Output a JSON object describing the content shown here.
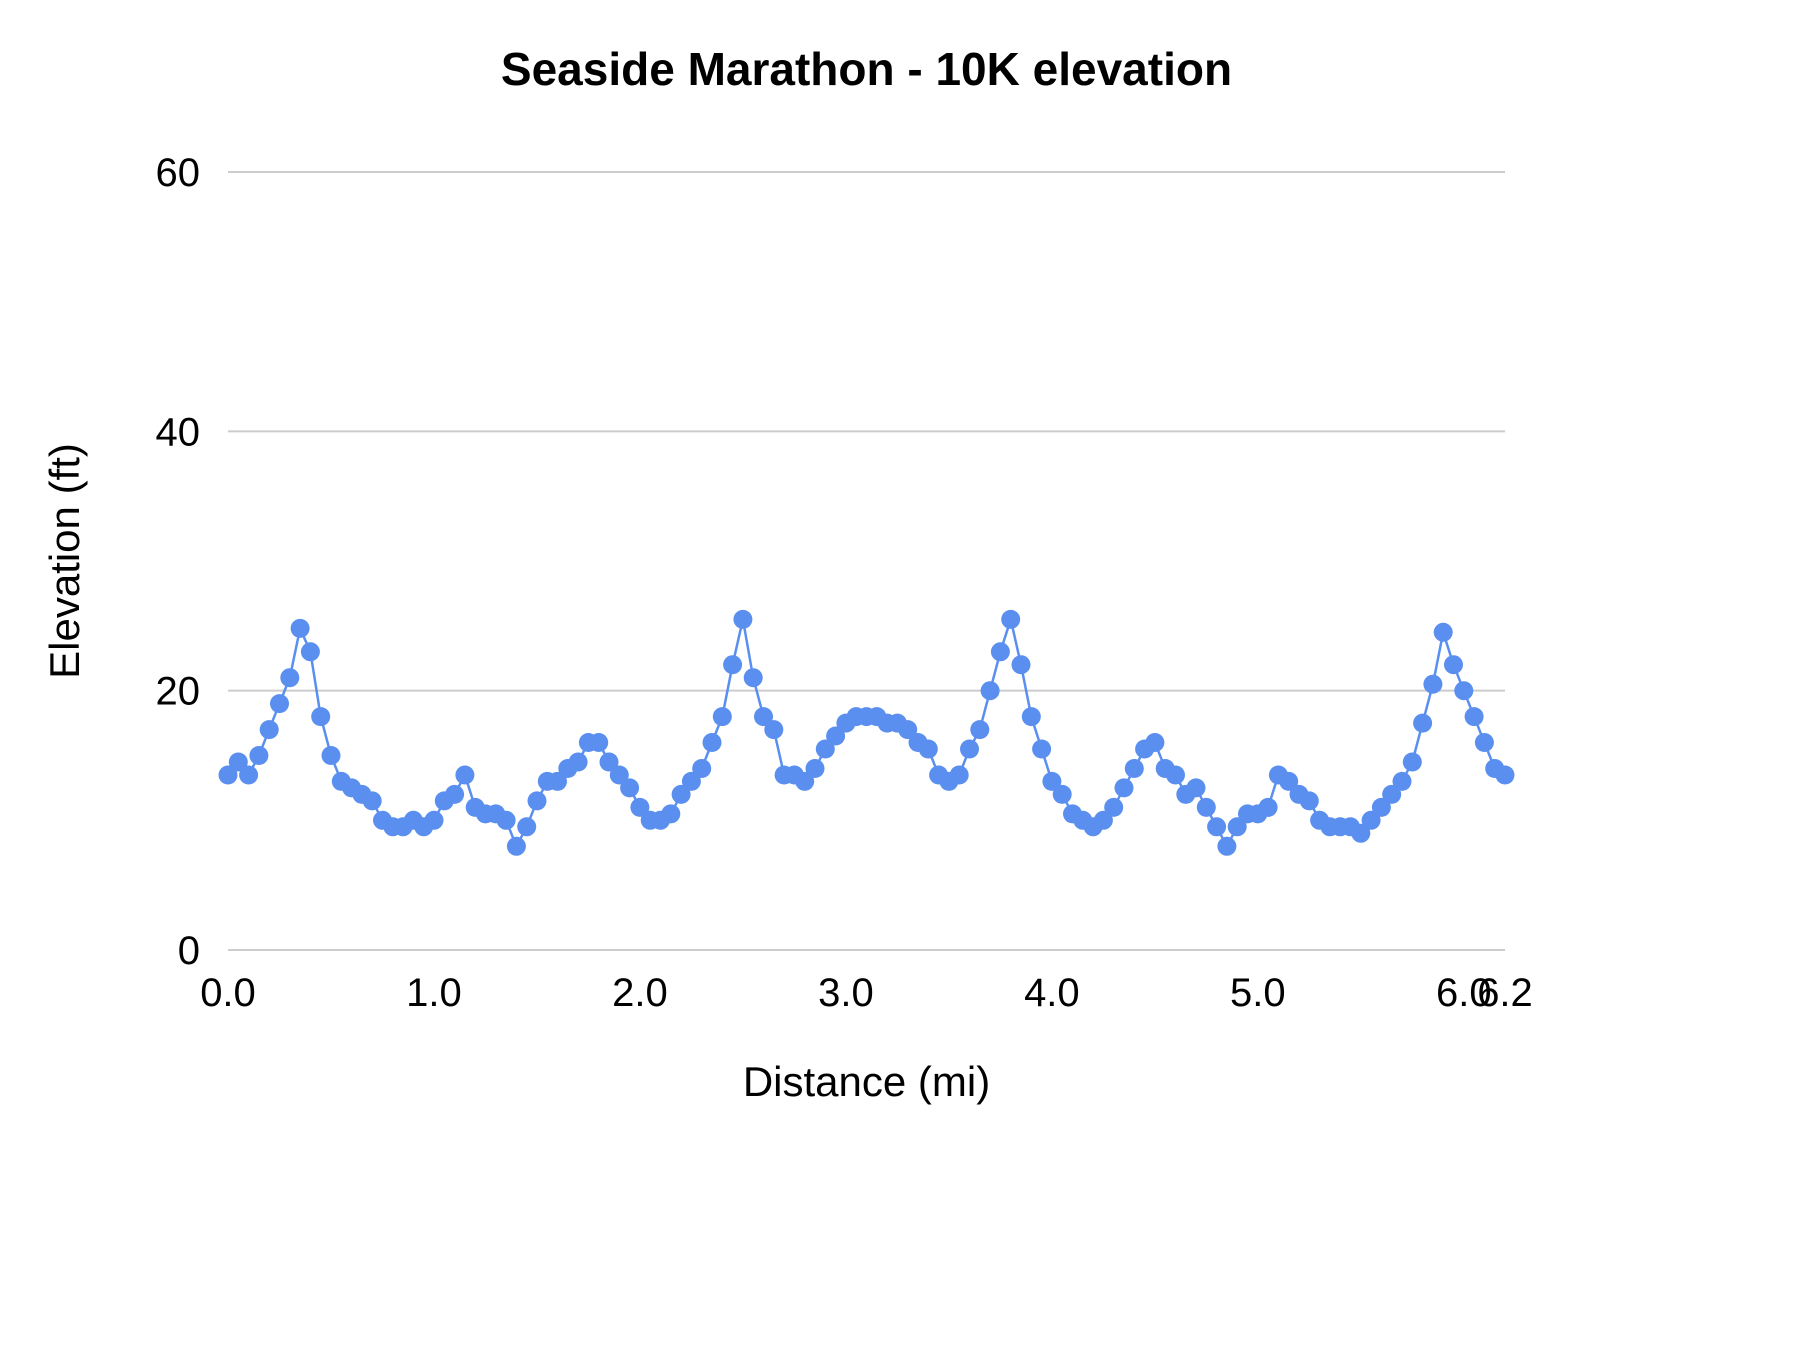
{
  "title": "Seaside Marathon - 10K elevation",
  "chart_data": {
    "type": "line",
    "title": "Seaside Marathon - 10K elevation",
    "xlabel": "Distance (mi)",
    "ylabel": "Elevation (ft)",
    "xlim": [
      0,
      6.2
    ],
    "ylim": [
      0,
      60
    ],
    "x_ticks": [
      0.0,
      1.0,
      2.0,
      3.0,
      4.0,
      5.0,
      6.0,
      6.2
    ],
    "x_tick_labels": [
      "0.0",
      "1.0",
      "2.0",
      "3.0",
      "4.0",
      "5.0",
      "6.0",
      "6.2"
    ],
    "y_ticks": [
      0,
      20,
      40,
      60
    ],
    "y_tick_labels": [
      "0",
      "20",
      "40",
      "60"
    ],
    "grid": "horizontal",
    "grid_color": "#cccccc",
    "legend_position": "none",
    "series": [
      {
        "name": "Elevation",
        "color": "#5a8ff0",
        "marker": "circle",
        "x": [
          0.0,
          0.05,
          0.1,
          0.15,
          0.2,
          0.25,
          0.3,
          0.35,
          0.4,
          0.45,
          0.5,
          0.55,
          0.6,
          0.65,
          0.7,
          0.75,
          0.8,
          0.85,
          0.9,
          0.95,
          1.0,
          1.05,
          1.1,
          1.15,
          1.2,
          1.25,
          1.3,
          1.35,
          1.4,
          1.45,
          1.5,
          1.55,
          1.6,
          1.65,
          1.7,
          1.75,
          1.8,
          1.85,
          1.9,
          1.95,
          2.0,
          2.05,
          2.1,
          2.15,
          2.2,
          2.25,
          2.3,
          2.35,
          2.4,
          2.45,
          2.5,
          2.55,
          2.6,
          2.65,
          2.7,
          2.75,
          2.8,
          2.85,
          2.9,
          2.95,
          3.0,
          3.05,
          3.1,
          3.15,
          3.2,
          3.25,
          3.3,
          3.35,
          3.4,
          3.45,
          3.5,
          3.55,
          3.6,
          3.65,
          3.7,
          3.75,
          3.8,
          3.85,
          3.9,
          3.95,
          4.0,
          4.05,
          4.1,
          4.15,
          4.2,
          4.25,
          4.3,
          4.35,
          4.4,
          4.45,
          4.5,
          4.55,
          4.6,
          4.65,
          4.7,
          4.75,
          4.8,
          4.85,
          4.9,
          4.95,
          5.0,
          5.05,
          5.1,
          5.15,
          5.2,
          5.25,
          5.3,
          5.35,
          5.4,
          5.45,
          5.5,
          5.55,
          5.6,
          5.65,
          5.7,
          5.75,
          5.8,
          5.85,
          5.9,
          5.95,
          6.0,
          6.05,
          6.1,
          6.15,
          6.2
        ],
        "y": [
          13.5,
          14.5,
          13.5,
          15,
          17,
          19,
          21,
          24.8,
          23,
          18,
          15,
          13,
          12.5,
          12,
          11.5,
          10,
          9.5,
          9.5,
          10,
          9.5,
          10,
          11.5,
          12,
          13.5,
          11,
          10.5,
          10.5,
          10,
          8,
          9.5,
          11.5,
          13,
          13,
          14,
          14.5,
          16,
          16,
          14.5,
          13.5,
          12.5,
          11,
          10,
          10,
          10.5,
          12,
          13,
          14,
          16,
          18,
          22,
          25.5,
          21,
          18,
          17,
          13.5,
          13.5,
          13,
          14,
          15.5,
          16.5,
          17.5,
          18,
          18,
          18,
          17.5,
          17.5,
          17,
          16,
          15.5,
          13.5,
          13,
          13.5,
          15.5,
          17,
          20,
          23,
          25.5,
          22,
          18,
          15.5,
          13,
          12,
          10.5,
          10,
          9.5,
          10,
          11,
          12.5,
          14,
          15.5,
          16,
          14,
          13.5,
          12,
          12.5,
          11,
          9.5,
          8,
          9.5,
          10.5,
          10.5,
          11,
          13.5,
          13,
          12,
          11.5,
          10,
          9.5,
          9.5,
          9.5,
          9,
          10,
          11,
          12,
          13,
          14.5,
          17.5,
          20.5,
          24.5,
          22,
          20,
          18,
          16,
          14,
          13.5
        ]
      }
    ]
  }
}
